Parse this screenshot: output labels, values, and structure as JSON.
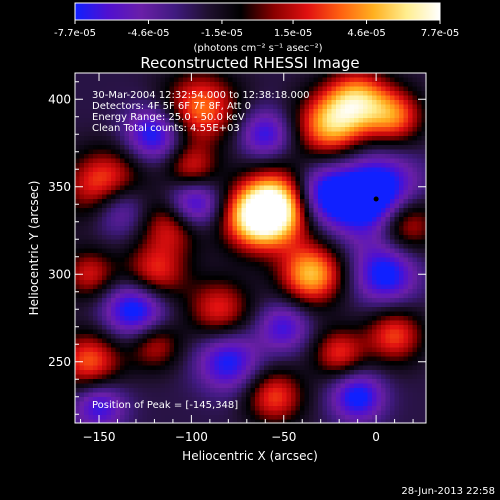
{
  "chart_data": {
    "type": "heatmap",
    "title": "Reconstructed RHESSI Image",
    "xlabel": "Heliocentric X (arcsec)",
    "ylabel": "Heliocentric Y (arcsec)",
    "xlim": [
      -163,
      27
    ],
    "ylim": [
      215,
      415
    ],
    "x_ticks": [
      -150,
      -100,
      -50,
      0
    ],
    "y_ticks": [
      250,
      300,
      350,
      400
    ],
    "colorbar": {
      "min": -7.7e-05,
      "max": 7.7e-05,
      "ticks": [
        "-7.7e-05",
        "-4.6e-05",
        "-1.5e-05",
        "1.5e-05",
        "4.6e-05",
        "7.7e-05"
      ],
      "units": "(photons cm⁻² s⁻¹ asec⁻²)",
      "colors": [
        "#1020ff",
        "#5010d0",
        "#6a1fa8",
        "#401a80",
        "#201030",
        "#000000",
        "#8a0000",
        "#e01010",
        "#ff6010",
        "#ffb020",
        "#ffee90",
        "#ffffff"
      ]
    },
    "annotations": [
      "30-Mar-2004 12:32:54.000 to 12:38:18.000",
      "Detectors: 4F 5F 6F 7F 8F, Att 0",
      "Energy Range: 25.0 - 50.0 keV",
      "Clean     Total counts: 4.55E+03"
    ],
    "peak_label": "Position of Peak = [-145,348]",
    "peak": [
      -145,
      348
    ],
    "marker": [
      0,
      343
    ],
    "blobs": [
      {
        "x": -145,
        "y": 348,
        "r": 14,
        "v": 0.98
      },
      {
        "x": -52,
        "y": 340,
        "r": 14,
        "v": 0.9
      },
      {
        "x": -65,
        "y": 332,
        "r": 13,
        "v": 0.85
      },
      {
        "x": -35,
        "y": 300,
        "r": 12,
        "v": 0.8
      },
      {
        "x": -25,
        "y": 385,
        "r": 13,
        "v": 0.75
      },
      {
        "x": -10,
        "y": 400,
        "r": 12,
        "v": 0.7
      },
      {
        "x": -95,
        "y": 395,
        "r": 14,
        "v": 0.65
      },
      {
        "x": -110,
        "y": 330,
        "r": 12,
        "v": 0.6
      },
      {
        "x": -120,
        "y": 300,
        "r": 12,
        "v": 0.55
      },
      {
        "x": -155,
        "y": 250,
        "r": 12,
        "v": 0.6
      },
      {
        "x": -155,
        "y": 300,
        "r": 10,
        "v": 0.45
      },
      {
        "x": -85,
        "y": 280,
        "r": 12,
        "v": 0.5
      },
      {
        "x": -55,
        "y": 230,
        "r": 11,
        "v": 0.55
      },
      {
        "x": 15,
        "y": 330,
        "r": 12,
        "v": 0.7
      },
      {
        "x": 10,
        "y": 390,
        "r": 11,
        "v": 0.6
      },
      {
        "x": 10,
        "y": 265,
        "r": 11,
        "v": 0.55
      },
      {
        "x": -120,
        "y": 260,
        "r": 10,
        "v": 0.45
      },
      {
        "x": -20,
        "y": 255,
        "r": 10,
        "v": 0.5
      },
      {
        "x": -100,
        "y": 360,
        "r": 10,
        "v": 0.5
      },
      {
        "x": 0,
        "y": 343,
        "r": 16,
        "v": -0.95
      },
      {
        "x": -140,
        "y": 340,
        "r": 12,
        "v": -0.85
      },
      {
        "x": -100,
        "y": 340,
        "r": 11,
        "v": -0.75
      },
      {
        "x": -130,
        "y": 280,
        "r": 12,
        "v": -0.7
      },
      {
        "x": -30,
        "y": 345,
        "r": 12,
        "v": -0.65
      },
      {
        "x": 5,
        "y": 300,
        "r": 12,
        "v": -0.6
      },
      {
        "x": -120,
        "y": 380,
        "r": 11,
        "v": -0.6
      },
      {
        "x": -80,
        "y": 250,
        "r": 12,
        "v": -0.55
      },
      {
        "x": -10,
        "y": 230,
        "r": 10,
        "v": -0.6
      },
      {
        "x": -60,
        "y": 380,
        "r": 10,
        "v": -0.5
      },
      {
        "x": -50,
        "y": 270,
        "r": 10,
        "v": -0.45
      },
      {
        "x": -150,
        "y": 225,
        "r": 10,
        "v": -0.5
      }
    ]
  },
  "footer": {
    "timestamp": "28-Jun-2013 22:58"
  }
}
